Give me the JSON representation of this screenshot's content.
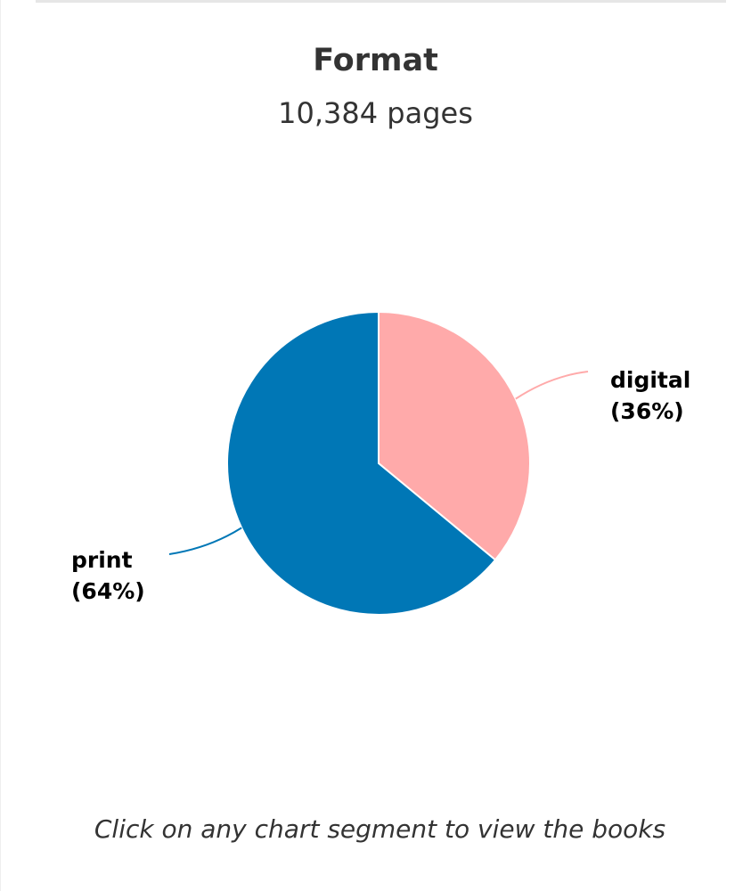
{
  "header": {
    "title": "Format",
    "subtitle": "10,384 pages"
  },
  "chart_data": {
    "type": "pie",
    "title": "Format",
    "subtitle": "10,384 pages",
    "slices": [
      {
        "label": "digital",
        "percent_label": "(36%)",
        "value": 36,
        "color": "#ffaaaa"
      },
      {
        "label": "print",
        "percent_label": "(64%)",
        "value": 64,
        "color": "#0077b6"
      }
    ]
  },
  "footer": {
    "instruction": "Click on any chart segment to view the books"
  }
}
